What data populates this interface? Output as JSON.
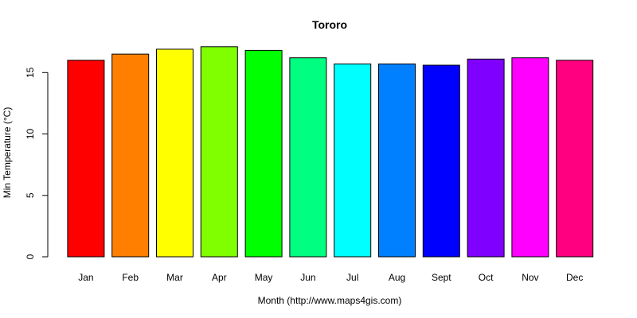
{
  "chart_data": {
    "type": "bar",
    "title": "Tororo",
    "xlabel": "Month (http://www.maps4gis.com)",
    "ylabel": "Min Temperature (°C)",
    "categories": [
      "Jan",
      "Feb",
      "Mar",
      "Apr",
      "May",
      "Jun",
      "Jul",
      "Aug",
      "Sept",
      "Oct",
      "Nov",
      "Dec"
    ],
    "values": [
      16.0,
      16.5,
      16.9,
      17.1,
      16.8,
      16.2,
      15.7,
      15.7,
      15.6,
      16.1,
      16.2,
      16.0
    ],
    "colors": [
      "#FF0000",
      "#FF8000",
      "#FFFF00",
      "#80FF00",
      "#00FF00",
      "#00FF80",
      "#00FFFF",
      "#0080FF",
      "#0000FF",
      "#8000FF",
      "#FF00FF",
      "#FF0080"
    ],
    "ylim": [
      0,
      17.8
    ],
    "yticks": [
      0,
      5,
      10,
      15
    ],
    "ytick_labels": [
      "0",
      "5",
      "10",
      "15"
    ],
    "grid": false,
    "legend": "none"
  }
}
